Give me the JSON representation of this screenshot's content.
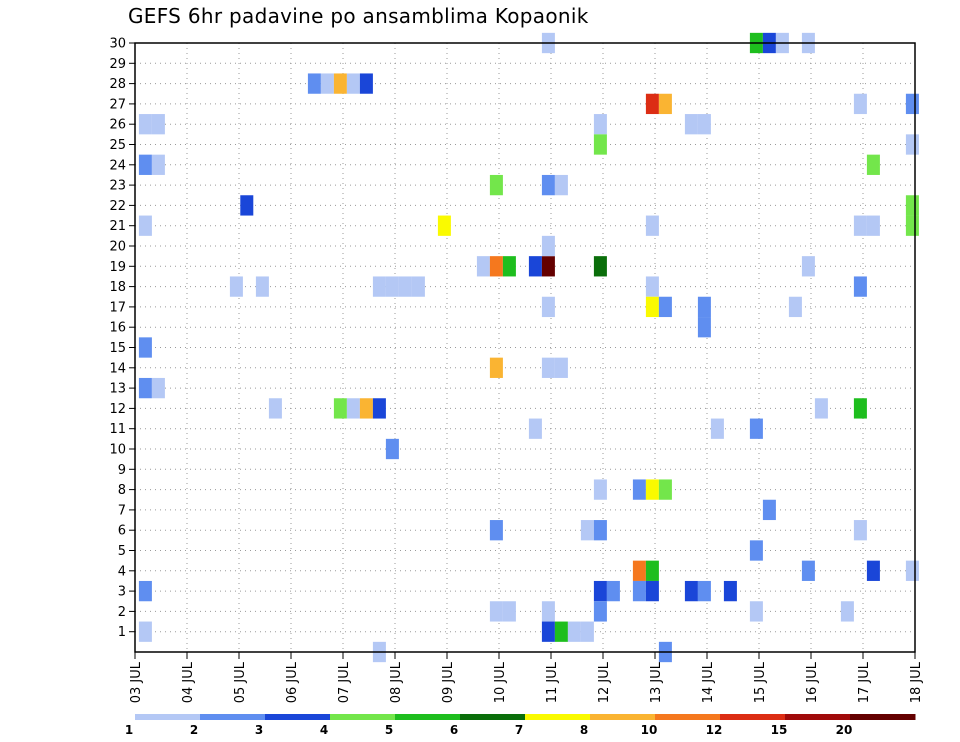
{
  "chart_data": {
    "type": "heatmap",
    "title": "GEFS 6hr padavine po ansamblima Kopaonik",
    "xlabel": "",
    "ylabel": "",
    "x_tick_labels": [
      "03 JUL",
      "04 JUL",
      "05 JUL",
      "06 JUL",
      "07 JUL",
      "08 JUL",
      "09 JUL",
      "10 JUL",
      "11 JUL",
      "12 JUL",
      "13 JUL",
      "14 JUL",
      "15 JUL",
      "16 JUL",
      "17 JUL",
      "18 JUL"
    ],
    "y_tick_labels": [
      "1",
      "2",
      "3",
      "4",
      "5",
      "6",
      "7",
      "8",
      "9",
      "10",
      "11",
      "12",
      "13",
      "14",
      "15",
      "16",
      "17",
      "18",
      "19",
      "20",
      "21",
      "22",
      "23",
      "24",
      "25",
      "26",
      "27",
      "28",
      "29",
      "30"
    ],
    "xlim": [
      0,
      15
    ],
    "ylim": [
      0,
      30
    ],
    "grid": true,
    "legend": {
      "placement": "bottom",
      "colors": [
        "#b4c8f5",
        "#5f8ef0",
        "#1a46d8",
        "#73e64b",
        "#1ebe1e",
        "#0a6e0a",
        "#fafa00",
        "#fab432",
        "#f5781e",
        "#dc2d14",
        "#a00a0a",
        "#640000"
      ],
      "labels": [
        "1",
        "2",
        "3",
        "4",
        "5",
        "6",
        "7",
        "8",
        "10",
        "12",
        "15",
        "20"
      ]
    },
    "cells": [
      {
        "x": 0.2,
        "y": 1,
        "v": 1
      },
      {
        "x": 0.2,
        "y": 3,
        "v": 2
      },
      {
        "x": 0.2,
        "y": 13,
        "v": 2
      },
      {
        "x": 0.45,
        "y": 13,
        "v": 1
      },
      {
        "x": 0.2,
        "y": 15,
        "v": 2
      },
      {
        "x": 0.2,
        "y": 21,
        "v": 1
      },
      {
        "x": 0.2,
        "y": 24,
        "v": 2
      },
      {
        "x": 0.45,
        "y": 24,
        "v": 1
      },
      {
        "x": 0.2,
        "y": 26,
        "v": 1
      },
      {
        "x": 0.45,
        "y": 26,
        "v": 1
      },
      {
        "x": 1.95,
        "y": 18,
        "v": 1
      },
      {
        "x": 2.15,
        "y": 22,
        "v": 3
      },
      {
        "x": 2.45,
        "y": 18,
        "v": 1
      },
      {
        "x": 2.7,
        "y": 12,
        "v": 1
      },
      {
        "x": 3.45,
        "y": 28,
        "v": 2
      },
      {
        "x": 3.7,
        "y": 28,
        "v": 1
      },
      {
        "x": 3.95,
        "y": 28,
        "v": 8
      },
      {
        "x": 4.2,
        "y": 28,
        "v": 1
      },
      {
        "x": 4.45,
        "y": 28,
        "v": 3
      },
      {
        "x": 3.95,
        "y": 12,
        "v": 4
      },
      {
        "x": 4.2,
        "y": 12,
        "v": 1
      },
      {
        "x": 4.45,
        "y": 12,
        "v": 8
      },
      {
        "x": 4.7,
        "y": 12,
        "v": 3
      },
      {
        "x": 4.7,
        "y": 0,
        "v": 1
      },
      {
        "x": 4.95,
        "y": 10,
        "v": 2
      },
      {
        "x": 4.7,
        "y": 18,
        "v": 1
      },
      {
        "x": 4.95,
        "y": 18,
        "v": 1
      },
      {
        "x": 5.2,
        "y": 18,
        "v": 1
      },
      {
        "x": 5.45,
        "y": 18,
        "v": 1
      },
      {
        "x": 5.95,
        "y": 21,
        "v": 7
      },
      {
        "x": 6.7,
        "y": 19,
        "v": 1
      },
      {
        "x": 6.95,
        "y": 19,
        "v": 10
      },
      {
        "x": 7.2,
        "y": 19,
        "v": 5
      },
      {
        "x": 6.95,
        "y": 23,
        "v": 4
      },
      {
        "x": 6.95,
        "y": 14,
        "v": 8
      },
      {
        "x": 6.95,
        "y": 6,
        "v": 2
      },
      {
        "x": 6.95,
        "y": 2,
        "v": 1
      },
      {
        "x": 7.2,
        "y": 2,
        "v": 1
      },
      {
        "x": 7.7,
        "y": 11,
        "v": 1
      },
      {
        "x": 7.7,
        "y": 19,
        "v": 3
      },
      {
        "x": 7.95,
        "y": 19,
        "v": 20
      },
      {
        "x": 7.95,
        "y": 30,
        "v": 1
      },
      {
        "x": 7.95,
        "y": 23,
        "v": 2
      },
      {
        "x": 8.2,
        "y": 23,
        "v": 1
      },
      {
        "x": 7.95,
        "y": 20,
        "v": 1
      },
      {
        "x": 7.95,
        "y": 17,
        "v": 1
      },
      {
        "x": 7.95,
        "y": 14,
        "v": 1
      },
      {
        "x": 8.2,
        "y": 14,
        "v": 1
      },
      {
        "x": 7.95,
        "y": 2,
        "v": 1
      },
      {
        "x": 7.95,
        "y": 1,
        "v": 3
      },
      {
        "x": 8.2,
        "y": 1,
        "v": 5
      },
      {
        "x": 8.45,
        "y": 1,
        "v": 1
      },
      {
        "x": 8.7,
        "y": 1,
        "v": 1
      },
      {
        "x": 8.7,
        "y": 6,
        "v": 1
      },
      {
        "x": 8.95,
        "y": 26,
        "v": 1
      },
      {
        "x": 8.95,
        "y": 25,
        "v": 4
      },
      {
        "x": 8.95,
        "y": 19,
        "v": 6
      },
      {
        "x": 8.95,
        "y": 8,
        "v": 1
      },
      {
        "x": 8.95,
        "y": 6,
        "v": 2
      },
      {
        "x": 8.95,
        "y": 3,
        "v": 3
      },
      {
        "x": 9.2,
        "y": 3,
        "v": 2
      },
      {
        "x": 8.95,
        "y": 2,
        "v": 2
      },
      {
        "x": 9.95,
        "y": 27,
        "v": 12
      },
      {
        "x": 10.2,
        "y": 27,
        "v": 8
      },
      {
        "x": 9.95,
        "y": 21,
        "v": 1
      },
      {
        "x": 9.95,
        "y": 18,
        "v": 1
      },
      {
        "x": 9.95,
        "y": 17,
        "v": 7
      },
      {
        "x": 10.2,
        "y": 17,
        "v": 2
      },
      {
        "x": 9.7,
        "y": 8,
        "v": 2
      },
      {
        "x": 9.95,
        "y": 8,
        "v": 7
      },
      {
        "x": 10.2,
        "y": 8,
        "v": 4
      },
      {
        "x": 9.7,
        "y": 4,
        "v": 10
      },
      {
        "x": 9.95,
        "y": 4,
        "v": 5
      },
      {
        "x": 9.7,
        "y": 3,
        "v": 2
      },
      {
        "x": 9.95,
        "y": 3,
        "v": 3
      },
      {
        "x": 10.2,
        "y": 0,
        "v": 2
      },
      {
        "x": 10.7,
        "y": 3,
        "v": 3
      },
      {
        "x": 10.95,
        "y": 3,
        "v": 2
      },
      {
        "x": 11.45,
        "y": 3,
        "v": 3
      },
      {
        "x": 10.7,
        "y": 26,
        "v": 1
      },
      {
        "x": 10.95,
        "y": 26,
        "v": 1
      },
      {
        "x": 10.95,
        "y": 17,
        "v": 2
      },
      {
        "x": 10.95,
        "y": 16,
        "v": 2
      },
      {
        "x": 11.2,
        "y": 11,
        "v": 1
      },
      {
        "x": 11.95,
        "y": 30,
        "v": 5
      },
      {
        "x": 12.2,
        "y": 30,
        "v": 3
      },
      {
        "x": 12.45,
        "y": 30,
        "v": 1
      },
      {
        "x": 12.95,
        "y": 30,
        "v": 1
      },
      {
        "x": 11.95,
        "y": 11,
        "v": 2
      },
      {
        "x": 12.2,
        "y": 7,
        "v": 2
      },
      {
        "x": 11.95,
        "y": 5,
        "v": 2
      },
      {
        "x": 11.95,
        "y": 2,
        "v": 1
      },
      {
        "x": 12.7,
        "y": 17,
        "v": 1
      },
      {
        "x": 12.95,
        "y": 19,
        "v": 1
      },
      {
        "x": 13.2,
        "y": 12,
        "v": 1
      },
      {
        "x": 12.95,
        "y": 4,
        "v": 2
      },
      {
        "x": 13.7,
        "y": 2,
        "v": 1
      },
      {
        "x": 13.95,
        "y": 27,
        "v": 1
      },
      {
        "x": 13.95,
        "y": 21,
        "v": 1
      },
      {
        "x": 14.2,
        "y": 21,
        "v": 1
      },
      {
        "x": 13.95,
        "y": 18,
        "v": 2
      },
      {
        "x": 13.95,
        "y": 12,
        "v": 5
      },
      {
        "x": 14.2,
        "y": 24,
        "v": 4
      },
      {
        "x": 13.95,
        "y": 6,
        "v": 1
      },
      {
        "x": 14.2,
        "y": 4,
        "v": 3
      },
      {
        "x": 14.95,
        "y": 27,
        "v": 2
      },
      {
        "x": 14.95,
        "y": 25,
        "v": 1
      },
      {
        "x": 14.95,
        "y": 21,
        "v": 4
      },
      {
        "x": 14.95,
        "y": 22,
        "v": 4
      },
      {
        "x": 14.95,
        "y": 4,
        "v": 1
      }
    ]
  }
}
